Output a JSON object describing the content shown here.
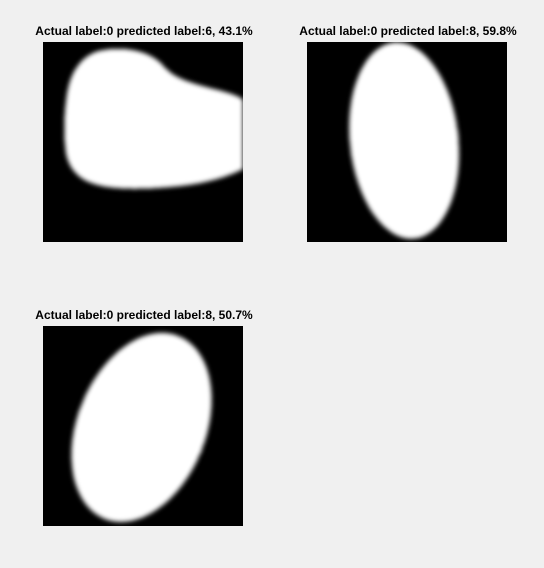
{
  "panels": [
    {
      "title": "Actual label:0 predicted label:6, 43.1%"
    },
    {
      "title": "Actual label:0 predicted label:8, 59.8%"
    },
    {
      "title": "Actual label:0 predicted label:8, 50.7%"
    }
  ]
}
